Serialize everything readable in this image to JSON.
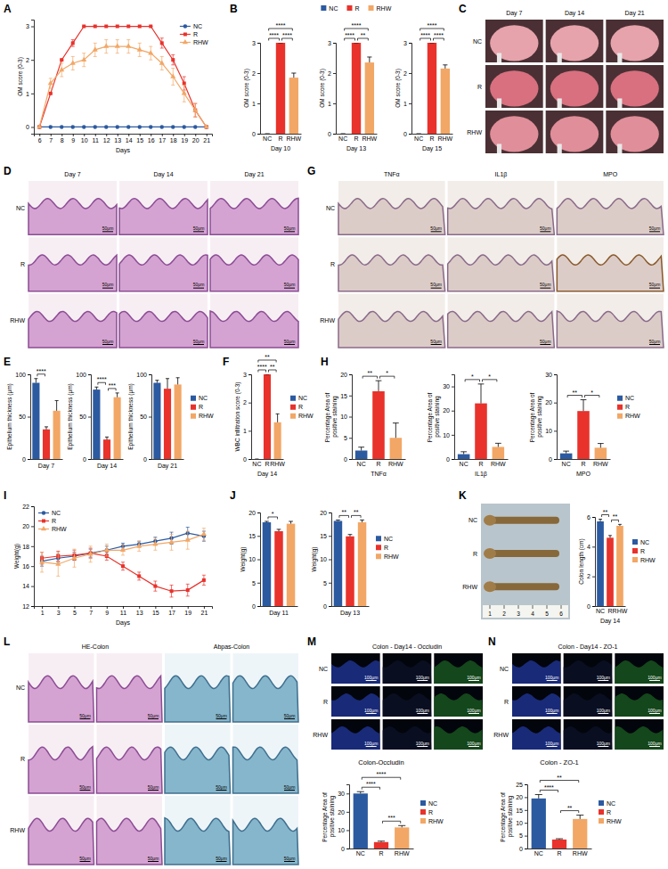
{
  "chart_data": [
    {
      "panel": "A",
      "type": "line",
      "x_label": "Days",
      "y_label": "OM score (0-3)",
      "legend": "top-right",
      "x": [
        6,
        7,
        8,
        9,
        10,
        11,
        12,
        13,
        14,
        15,
        16,
        17,
        18,
        19,
        20,
        21
      ],
      "xlim": [
        5.5,
        21.5
      ],
      "xticks": [
        6,
        7,
        8,
        9,
        10,
        11,
        12,
        13,
        14,
        15,
        16,
        17,
        18,
        19,
        20,
        21
      ],
      "ylim": [
        -0.2,
        3.2
      ],
      "yticks": [
        0,
        1,
        2,
        3
      ],
      "series": [
        {
          "name": "NC",
          "color": "#2c5aa0",
          "marker": "circle",
          "values": [
            0,
            0,
            0,
            0,
            0,
            0,
            0,
            0,
            0,
            0,
            0,
            0,
            0,
            0,
            0,
            0
          ]
        },
        {
          "name": "R",
          "color": "#e8322b",
          "marker": "square",
          "values": [
            0,
            1,
            2,
            2.5,
            3,
            3,
            3,
            3,
            3,
            3,
            3,
            2.5,
            2,
            1.3,
            0.5,
            0
          ],
          "errors": [
            0,
            0,
            0,
            0.1,
            0,
            0,
            0,
            0,
            0,
            0,
            0,
            0.15,
            0.15,
            0.2,
            0.2,
            0
          ]
        },
        {
          "name": "RHW",
          "color": "#f2a766",
          "marker": "triangle",
          "values": [
            0,
            1.3,
            1.7,
            1.9,
            2.0,
            2.3,
            2.4,
            2.4,
            2.4,
            2.3,
            2.2,
            1.9,
            1.5,
            1.0,
            0.5,
            0
          ],
          "errors": [
            0,
            0.15,
            0.2,
            0.2,
            0.2,
            0.2,
            0.2,
            0.2,
            0.2,
            0.2,
            0.2,
            0.2,
            0.25,
            0.25,
            0.2,
            0
          ]
        }
      ]
    },
    {
      "panel": "B",
      "type": "bar",
      "categories": [
        "NC",
        "R",
        "RHW"
      ],
      "values": [
        0,
        3,
        1.85
      ],
      "errors": [
        0,
        0,
        0.15
      ],
      "colors": [
        "#2c5aa0",
        "#e8322b",
        "#f2a766"
      ],
      "ylim": [
        0,
        3
      ],
      "yticks": [
        0,
        1,
        2,
        3
      ],
      "y_label": "OM score (0-3)",
      "x_label": "Day 10",
      "annotations": [
        {
          "text": "****",
          "between": [
            0,
            2
          ]
        },
        {
          "text": "****",
          "between": [
            0,
            1
          ]
        },
        {
          "text": "****",
          "between": [
            1,
            2
          ]
        }
      ]
    },
    {
      "type": "bar",
      "categories": [
        "NC",
        "R",
        "RHW"
      ],
      "values": [
        0,
        3,
        2.35
      ],
      "errors": [
        0,
        0,
        0.18
      ],
      "colors": [
        "#2c5aa0",
        "#e8322b",
        "#f2a766"
      ],
      "ylim": [
        0,
        3
      ],
      "yticks": [
        0,
        1,
        2,
        3
      ],
      "y_label": "OM score (0-3)",
      "x_label": "Day 13",
      "legend": "top",
      "annotations": [
        {
          "text": "****",
          "between": [
            0,
            2
          ]
        },
        {
          "text": "****",
          "between": [
            0,
            1
          ]
        },
        {
          "text": "**",
          "between": [
            1,
            2
          ]
        }
      ]
    },
    {
      "type": "bar",
      "categories": [
        "NC",
        "R",
        "RHW"
      ],
      "values": [
        0,
        3,
        2.15
      ],
      "errors": [
        0,
        0,
        0.12
      ],
      "colors": [
        "#2c5aa0",
        "#e8322b",
        "#f2a766"
      ],
      "ylim": [
        0,
        3
      ],
      "yticks": [
        0,
        1,
        2,
        3
      ],
      "y_label": "OM score (0-3)",
      "x_label": "Day 15",
      "annotations": [
        {
          "text": "****",
          "between": [
            0,
            2
          ]
        },
        {
          "text": "****",
          "between": [
            0,
            1
          ]
        },
        {
          "text": "****",
          "between": [
            1,
            2
          ]
        }
      ]
    },
    {
      "panel": "E",
      "type": "bar",
      "categories": [
        "NC",
        "R",
        "RHW"
      ],
      "values": [
        90,
        35,
        57
      ],
      "errors": [
        5,
        3,
        12
      ],
      "colors": [
        "#2c5aa0",
        "#e8322b",
        "#f2a766"
      ],
      "ylim": [
        0,
        100
      ],
      "yticks": [
        0,
        50,
        100
      ],
      "y_label": "Epithelium thickness (μm)",
      "x_label": "Day 7",
      "tick_labels": "y",
      "annotations": [
        {
          "text": "****",
          "between": [
            0,
            1
          ]
        }
      ]
    },
    {
      "type": "bar",
      "categories": [
        "NC",
        "R",
        "RHW"
      ],
      "values": [
        82,
        23,
        73
      ],
      "errors": [
        3,
        3,
        5
      ],
      "colors": [
        "#2c5aa0",
        "#e8322b",
        "#f2a766"
      ],
      "ylim": [
        0,
        100
      ],
      "yticks": [
        0,
        50,
        100
      ],
      "y_label": "Epithelium thickness (μm)",
      "x_label": "Day 14",
      "tick_labels": "y",
      "annotations": [
        {
          "text": "****",
          "between": [
            0,
            1
          ]
        },
        {
          "text": "***",
          "between": [
            1,
            2
          ]
        }
      ]
    },
    {
      "type": "bar",
      "categories": [
        "NC",
        "R",
        "RHW"
      ],
      "values": [
        90,
        83,
        88
      ],
      "errors": [
        3,
        12,
        8
      ],
      "colors": [
        "#2c5aa0",
        "#e8322b",
        "#f2a766"
      ],
      "ylim": [
        0,
        100
      ],
      "yticks": [
        0,
        50,
        100
      ],
      "y_label": "Epithelium thickness (μm)",
      "x_label": "Day 21",
      "tick_labels": "y",
      "legend": "right"
    },
    {
      "panel": "F",
      "type": "bar",
      "categories": [
        "NC",
        "R",
        "RHW"
      ],
      "values": [
        0,
        3,
        1.3
      ],
      "errors": [
        0,
        0,
        0.3
      ],
      "colors": [
        "#2c5aa0",
        "#e8322b",
        "#f2a766"
      ],
      "ylim": [
        0,
        3
      ],
      "yticks": [
        0,
        1,
        2,
        3
      ],
      "y_label": "WBC infiltration score (0-3)",
      "x_label": "Day 14",
      "legend": "right",
      "annotations": [
        {
          "text": "**",
          "between": [
            0,
            2
          ]
        },
        {
          "text": "****",
          "between": [
            0,
            1
          ]
        },
        {
          "text": "**",
          "between": [
            1,
            2
          ]
        }
      ]
    },
    {
      "panel": "H",
      "type": "bar",
      "categories": [
        "NC",
        "R",
        "RHW"
      ],
      "values": [
        2,
        16,
        5
      ],
      "errors": [
        0.8,
        2.5,
        3.5
      ],
      "colors": [
        "#2c5aa0",
        "#e8322b",
        "#f2a766"
      ],
      "ylim": [
        0,
        20
      ],
      "yticks": [
        0,
        5,
        10,
        15,
        20
      ],
      "y_label": "Percentage Area of positive staining",
      "x_label": "TNFα",
      "annotations": [
        {
          "text": "**",
          "between": [
            0,
            1
          ]
        },
        {
          "text": "*",
          "between": [
            1,
            2
          ]
        }
      ]
    },
    {
      "type": "bar",
      "categories": [
        "NC",
        "R",
        "RHW"
      ],
      "values": [
        2,
        23,
        5
      ],
      "errors": [
        1,
        8,
        1.5
      ],
      "colors": [
        "#2c5aa0",
        "#e8322b",
        "#f2a766"
      ],
      "ylim": [
        0,
        35
      ],
      "yticks": [
        0,
        10,
        20,
        30
      ],
      "y_label": "Percentage Area of positive staining",
      "x_label": "IL1β",
      "annotations": [
        {
          "text": "*",
          "between": [
            0,
            1
          ]
        },
        {
          "text": "*",
          "between": [
            1,
            2
          ]
        }
      ]
    },
    {
      "type": "bar",
      "categories": [
        "NC",
        "R",
        "RHW"
      ],
      "values": [
        2,
        17,
        4
      ],
      "errors": [
        0.8,
        4,
        1.5
      ],
      "colors": [
        "#2c5aa0",
        "#e8322b",
        "#f2a766"
      ],
      "ylim": [
        0,
        30
      ],
      "yticks": [
        0,
        10,
        20,
        30
      ],
      "y_label": "Percentage Area of positive staining",
      "x_label": "MPO",
      "legend": "right",
      "annotations": [
        {
          "text": "**",
          "between": [
            0,
            1
          ]
        },
        {
          "text": "*",
          "between": [
            1,
            2
          ]
        }
      ]
    },
    {
      "panel": "I",
      "type": "line",
      "x_label": "Days",
      "y_label": "Weight(g)",
      "legend": "top-left",
      "x": [
        1,
        3,
        5,
        7,
        9,
        11,
        13,
        15,
        17,
        19,
        21
      ],
      "xlim": [
        0,
        22
      ],
      "xticks": [
        1,
        3,
        5,
        7,
        9,
        11,
        13,
        15,
        17,
        19,
        21
      ],
      "ylim": [
        12,
        22
      ],
      "yticks": [
        12,
        14,
        16,
        18,
        20,
        22
      ],
      "series": [
        {
          "name": "NC",
          "color": "#2c5aa0",
          "marker": "circle",
          "values": [
            16.5,
            16.8,
            17.0,
            17.3,
            17.6,
            18.0,
            18.2,
            18.5,
            18.8,
            19.3,
            19.0
          ],
          "errors": [
            0.5,
            0.4,
            0.4,
            0.4,
            0.4,
            0.3,
            0.3,
            0.4,
            0.6,
            0.6,
            0.5
          ]
        },
        {
          "name": "R",
          "color": "#e8322b",
          "marker": "square",
          "values": [
            16.8,
            17.0,
            17.1,
            17.3,
            17.0,
            16.0,
            15.0,
            14.0,
            13.5,
            13.6,
            14.6
          ],
          "errors": [
            0.6,
            0.5,
            0.5,
            0.5,
            0.4,
            0.4,
            0.4,
            0.5,
            0.6,
            0.6,
            0.5
          ]
        },
        {
          "name": "RHW",
          "color": "#f2a766",
          "marker": "triangle",
          "values": [
            16.4,
            16.2,
            16.8,
            17.2,
            17.6,
            17.6,
            18.0,
            18.2,
            18.4,
            18.6,
            19.2
          ],
          "errors": [
            1.0,
            1.2,
            0.9,
            0.8,
            0.6,
            0.5,
            0.5,
            0.6,
            0.8,
            0.9,
            0.6
          ]
        }
      ]
    },
    {
      "panel": "J",
      "type": "bar",
      "categories": [
        "NC",
        "R",
        "RHW"
      ],
      "values": [
        17.9,
        16.0,
        17.6
      ],
      "errors": [
        0.2,
        0.4,
        0.5
      ],
      "colors": [
        "#2c5aa0",
        "#e8322b",
        "#f2a766"
      ],
      "ylim": [
        0,
        20
      ],
      "yticks": [
        0,
        5,
        10,
        15,
        20
      ],
      "y_label": "Weight(g)",
      "x_label": "Day 11",
      "tick_labels": "y",
      "annotations": [
        {
          "text": "*",
          "between": [
            0,
            1
          ]
        }
      ]
    },
    {
      "type": "bar",
      "categories": [
        "NC",
        "R",
        "RHW"
      ],
      "values": [
        18.2,
        14.9,
        17.9
      ],
      "errors": [
        0.2,
        0.4,
        0.5
      ],
      "colors": [
        "#2c5aa0",
        "#e8322b",
        "#f2a766"
      ],
      "ylim": [
        0,
        20
      ],
      "yticks": [
        0,
        5,
        10,
        15,
        20
      ],
      "y_label": "Weight(g)",
      "x_label": "Day 13",
      "tick_labels": "y",
      "legend": "right",
      "annotations": [
        {
          "text": "**",
          "between": [
            0,
            1
          ]
        },
        {
          "text": "**",
          "between": [
            1,
            2
          ]
        }
      ]
    },
    {
      "type": "bar",
      "categories": [
        "NC",
        "R",
        "RHW"
      ],
      "values": [
        5.7,
        4.6,
        5.4
      ],
      "errors": [
        0.15,
        0.15,
        0.1
      ],
      "colors": [
        "#2c5aa0",
        "#e8322b",
        "#f2a766"
      ],
      "ylim": [
        0,
        6
      ],
      "yticks": [
        0,
        2,
        4,
        6
      ],
      "y_label": "Colon length (cm)",
      "x_label": "Day 14",
      "legend": "right",
      "annotations": [
        {
          "text": "**",
          "between": [
            0,
            1
          ]
        },
        {
          "text": "**",
          "between": [
            1,
            2
          ]
        }
      ]
    },
    {
      "type": "bar",
      "title": "Colon-Occludin",
      "categories": [
        "NC",
        "R",
        "RHW"
      ],
      "values": [
        30,
        3.5,
        11.5
      ],
      "errors": [
        1,
        0.5,
        1
      ],
      "colors": [
        "#2c5aa0",
        "#e8322b",
        "#f2a766"
      ],
      "ylim": [
        0,
        35
      ],
      "yticks": [
        0,
        10,
        20,
        30
      ],
      "y_label": "Percentage Area of positive staining",
      "legend": "right",
      "annotations": [
        {
          "text": "****",
          "between": [
            0,
            2
          ]
        },
        {
          "text": "****",
          "between": [
            0,
            1
          ]
        },
        {
          "text": "***",
          "between": [
            1,
            2
          ]
        }
      ]
    },
    {
      "type": "bar",
      "title": "Colon - ZO-1",
      "categories": [
        "NC",
        "R",
        "RHW"
      ],
      "values": [
        19.5,
        3.5,
        11.5
      ],
      "errors": [
        1.5,
        0.3,
        1.5
      ],
      "colors": [
        "#2c5aa0",
        "#e8322b",
        "#f2a766"
      ],
      "ylim": [
        0,
        25
      ],
      "yticks": [
        0,
        5,
        10,
        15,
        20,
        25
      ],
      "y_label": "Percentage Area of positive staining",
      "legend": "right",
      "annotations": [
        {
          "text": "**",
          "between": [
            0,
            2
          ]
        },
        {
          "text": "****",
          "between": [
            0,
            1
          ]
        },
        {
          "text": "**",
          "between": [
            1,
            2
          ]
        }
      ]
    }
  ],
  "image_panels": [
    {
      "panel": "C",
      "columns": [
        "Day 7",
        "Day 14",
        "Day 21"
      ],
      "rows": [
        "NC",
        "R",
        "RHW"
      ]
    },
    {
      "panel": "D",
      "columns": [
        "Day 7",
        "Day 14",
        "Day 21"
      ],
      "rows": [
        "NC",
        "R",
        "RHW"
      ],
      "scale_bar": "50μm"
    },
    {
      "panel": "G",
      "columns": [
        "TNFα",
        "IL1β",
        "MPO"
      ],
      "rows": [
        "NC",
        "R",
        "RHW"
      ],
      "scale_bar": "50μm"
    },
    {
      "panel": "K",
      "rows": [
        "NC",
        "R",
        "RHW"
      ],
      "ruler": [
        1,
        2,
        3,
        4,
        5,
        6
      ]
    },
    {
      "panel": "L",
      "column_groups": [
        "HE-Colon",
        "Abpas-Colon"
      ],
      "rows": [
        "NC",
        "R",
        "RHW"
      ],
      "scale_bar": "50μm"
    },
    {
      "panel": "M",
      "title": "Colon - Day14 - Occludin",
      "rows": [
        "NC",
        "R",
        "RHW"
      ],
      "scale_bar": "100μm"
    },
    {
      "panel": "N",
      "title": "Colon - Day14 - ZO-1",
      "rows": [
        "NC",
        "R",
        "RHW"
      ],
      "scale_bar": "100μm"
    }
  ]
}
